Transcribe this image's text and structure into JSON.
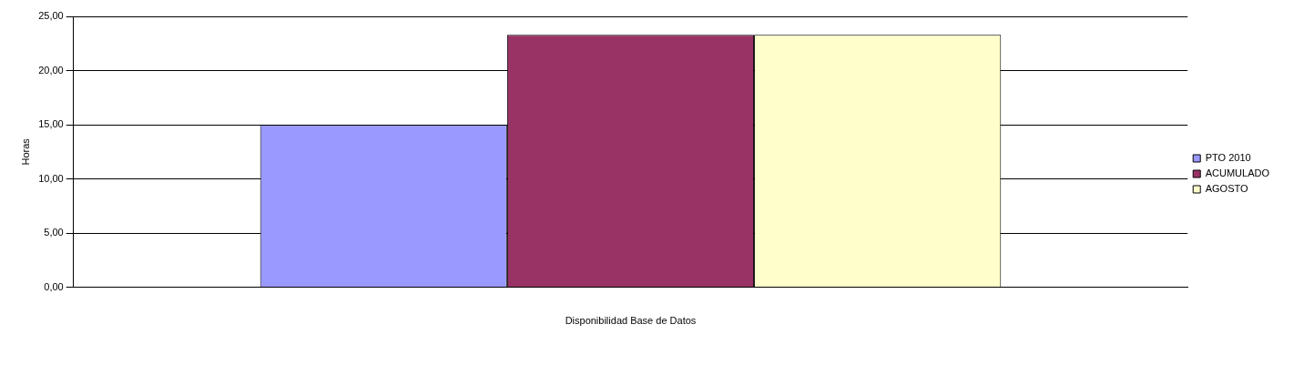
{
  "chart_data": {
    "type": "bar",
    "xlabel": "Disponibilidad Base de Datos",
    "ylabel": "Horas",
    "categories": [
      null
    ],
    "series": [
      {
        "name": "PTO 2010",
        "color": "#9999ff",
        "values": [
          15.0
        ]
      },
      {
        "name": "ACUMULADO",
        "color": "#993366",
        "values": [
          23.3
        ]
      },
      {
        "name": "AGOSTO",
        "color": "#ffffcc",
        "values": [
          23.3
        ]
      }
    ],
    "ylim": [
      0,
      25
    ],
    "yticks": [
      {
        "value": 0,
        "label": "0,00"
      },
      {
        "value": 5,
        "label": "5,00"
      },
      {
        "value": 10,
        "label": "10,00"
      },
      {
        "value": 15,
        "label": "15,00"
      },
      {
        "value": 20,
        "label": "20,00"
      },
      {
        "value": 25,
        "label": "25,00"
      }
    ],
    "grid": "y",
    "legend": "right"
  }
}
